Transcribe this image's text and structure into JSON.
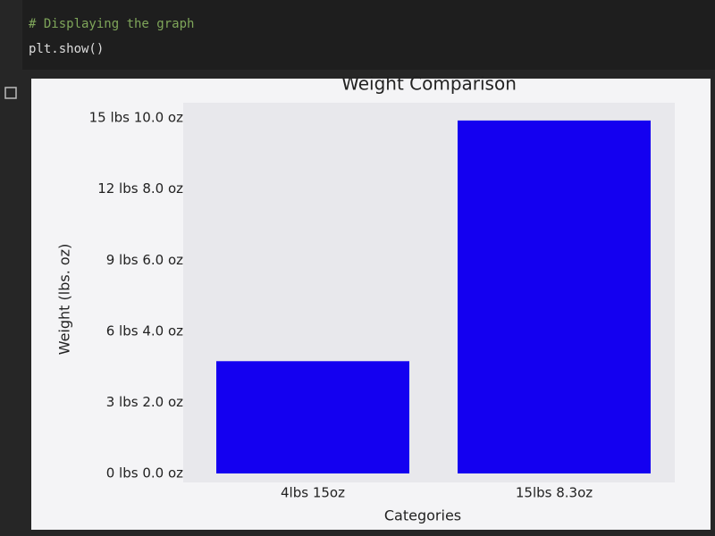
{
  "code": [
    "# Displaying the graph",
    "plt.show()"
  ],
  "chart_data": {
    "type": "bar",
    "title": "Weight Comparison",
    "x_label": "Categories",
    "y_label": "Weight (lbs. oz)",
    "categories": [
      "4lbs 15oz",
      "15lbs 8.3oz"
    ],
    "values": [
      4.9375,
      15.51875
    ],
    "color": "#1400f0",
    "ylim": [
      0,
      16.3
    ],
    "yticks": [
      {
        "value": 0,
        "label": "0 lbs 0.0 oz"
      },
      {
        "value": 3.125,
        "label": "3 lbs 2.0 oz"
      },
      {
        "value": 6.25,
        "label": "6 lbs 4.0 oz"
      },
      {
        "value": 9.375,
        "label": "9 lbs 6.0 oz"
      },
      {
        "value": 12.5,
        "label": "12 lbs 8.0 oz"
      },
      {
        "value": 15.625,
        "label": "15 lbs 10.0 oz"
      }
    ],
    "grid": false
  }
}
